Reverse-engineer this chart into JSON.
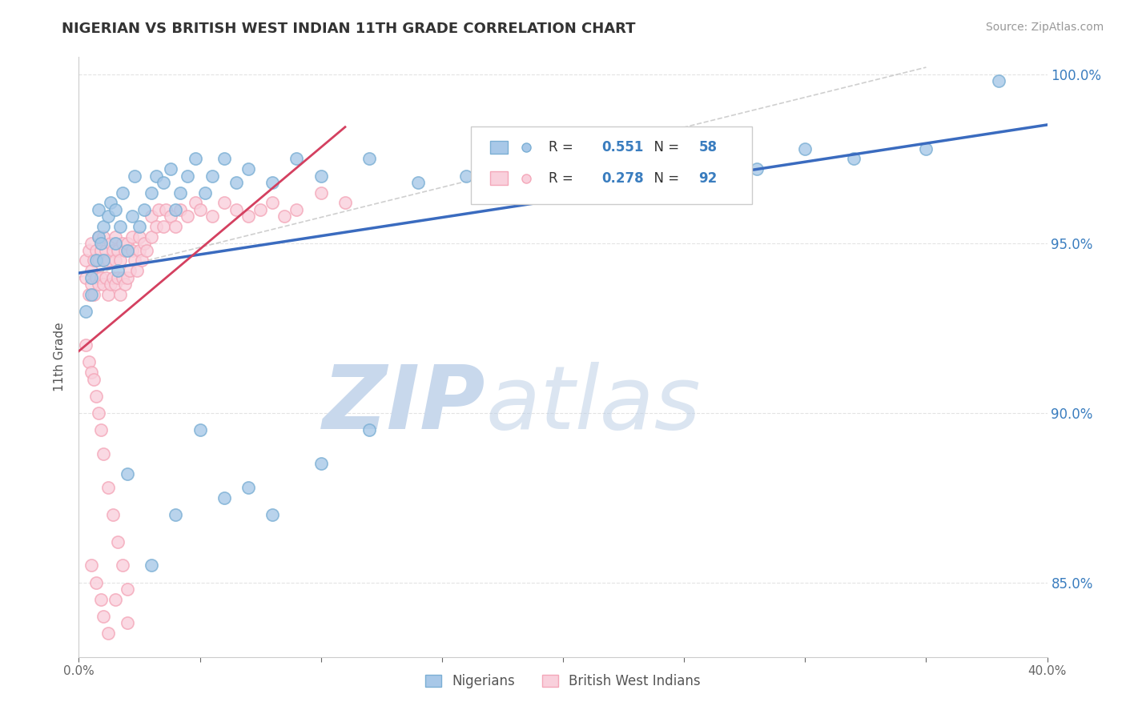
{
  "title": "NIGERIAN VS BRITISH WEST INDIAN 11TH GRADE CORRELATION CHART",
  "source_text": "Source: ZipAtlas.com",
  "ylabel": "11th Grade",
  "xlim": [
    0.0,
    0.4
  ],
  "ylim": [
    0.828,
    1.005
  ],
  "xticks": [
    0.0,
    0.05,
    0.1,
    0.15,
    0.2,
    0.25,
    0.3,
    0.35,
    0.4
  ],
  "xticklabels": [
    "0.0%",
    "",
    "",
    "",
    "",
    "",
    "",
    "",
    "40.0%"
  ],
  "yticks": [
    0.85,
    0.9,
    0.95,
    1.0
  ],
  "yticklabels": [
    "85.0%",
    "90.0%",
    "95.0%",
    "100.0%"
  ],
  "blue_R": 0.551,
  "blue_N": 58,
  "pink_R": 0.278,
  "pink_N": 92,
  "blue_color": "#a8c8e8",
  "blue_edge_color": "#7bafd4",
  "pink_color": "#f9d0dc",
  "pink_edge_color": "#f4a7b9",
  "trend_blue_color": "#3a6bbf",
  "trend_pink_color": "#d44060",
  "trend_pink_dash_color": "#cccccc",
  "watermark_zip": "ZIP",
  "watermark_atlas": "atlas",
  "watermark_color": "#dde6f0",
  "legend_label_blue": "Nigerians",
  "legend_label_pink": "British West Indians",
  "blue_scatter_x": [
    0.003,
    0.005,
    0.005,
    0.007,
    0.008,
    0.008,
    0.009,
    0.01,
    0.01,
    0.012,
    0.013,
    0.015,
    0.015,
    0.016,
    0.017,
    0.018,
    0.02,
    0.022,
    0.023,
    0.025,
    0.027,
    0.03,
    0.032,
    0.035,
    0.038,
    0.04,
    0.042,
    0.045,
    0.048,
    0.052,
    0.055,
    0.06,
    0.065,
    0.07,
    0.08,
    0.09,
    0.1,
    0.12,
    0.14,
    0.16,
    0.18,
    0.2,
    0.22,
    0.25,
    0.28,
    0.3,
    0.32,
    0.35,
    0.38,
    0.02,
    0.03,
    0.04,
    0.05,
    0.06,
    0.07,
    0.08,
    0.1,
    0.12
  ],
  "blue_scatter_y": [
    0.93,
    0.935,
    0.94,
    0.945,
    0.952,
    0.96,
    0.95,
    0.945,
    0.955,
    0.958,
    0.962,
    0.95,
    0.96,
    0.942,
    0.955,
    0.965,
    0.948,
    0.958,
    0.97,
    0.955,
    0.96,
    0.965,
    0.97,
    0.968,
    0.972,
    0.96,
    0.965,
    0.97,
    0.975,
    0.965,
    0.97,
    0.975,
    0.968,
    0.972,
    0.968,
    0.975,
    0.97,
    0.975,
    0.968,
    0.97,
    0.965,
    0.972,
    0.968,
    0.975,
    0.972,
    0.978,
    0.975,
    0.978,
    0.998,
    0.882,
    0.855,
    0.87,
    0.895,
    0.875,
    0.878,
    0.87,
    0.885,
    0.895
  ],
  "pink_scatter_x": [
    0.003,
    0.003,
    0.004,
    0.004,
    0.005,
    0.005,
    0.005,
    0.006,
    0.006,
    0.007,
    0.007,
    0.008,
    0.008,
    0.008,
    0.009,
    0.009,
    0.01,
    0.01,
    0.01,
    0.011,
    0.011,
    0.012,
    0.012,
    0.013,
    0.013,
    0.014,
    0.014,
    0.015,
    0.015,
    0.015,
    0.016,
    0.016,
    0.017,
    0.017,
    0.018,
    0.018,
    0.019,
    0.019,
    0.02,
    0.02,
    0.021,
    0.022,
    0.022,
    0.023,
    0.024,
    0.025,
    0.025,
    0.026,
    0.027,
    0.028,
    0.03,
    0.03,
    0.032,
    0.033,
    0.035,
    0.036,
    0.038,
    0.04,
    0.042,
    0.045,
    0.048,
    0.05,
    0.055,
    0.06,
    0.065,
    0.07,
    0.075,
    0.08,
    0.085,
    0.09,
    0.1,
    0.11,
    0.003,
    0.004,
    0.005,
    0.006,
    0.007,
    0.008,
    0.009,
    0.01,
    0.012,
    0.014,
    0.016,
    0.018,
    0.02,
    0.005,
    0.007,
    0.009,
    0.01,
    0.012,
    0.015,
    0.02
  ],
  "pink_scatter_y": [
    0.94,
    0.945,
    0.935,
    0.948,
    0.938,
    0.942,
    0.95,
    0.935,
    0.945,
    0.94,
    0.948,
    0.938,
    0.945,
    0.952,
    0.94,
    0.948,
    0.938,
    0.945,
    0.952,
    0.94,
    0.948,
    0.935,
    0.945,
    0.938,
    0.95,
    0.94,
    0.948,
    0.938,
    0.945,
    0.952,
    0.94,
    0.948,
    0.935,
    0.945,
    0.94,
    0.95,
    0.938,
    0.948,
    0.94,
    0.95,
    0.942,
    0.948,
    0.952,
    0.945,
    0.942,
    0.948,
    0.952,
    0.945,
    0.95,
    0.948,
    0.952,
    0.958,
    0.955,
    0.96,
    0.955,
    0.96,
    0.958,
    0.955,
    0.96,
    0.958,
    0.962,
    0.96,
    0.958,
    0.962,
    0.96,
    0.958,
    0.96,
    0.962,
    0.958,
    0.96,
    0.965,
    0.962,
    0.92,
    0.915,
    0.912,
    0.91,
    0.905,
    0.9,
    0.895,
    0.888,
    0.878,
    0.87,
    0.862,
    0.855,
    0.848,
    0.855,
    0.85,
    0.845,
    0.84,
    0.835,
    0.845,
    0.838
  ]
}
